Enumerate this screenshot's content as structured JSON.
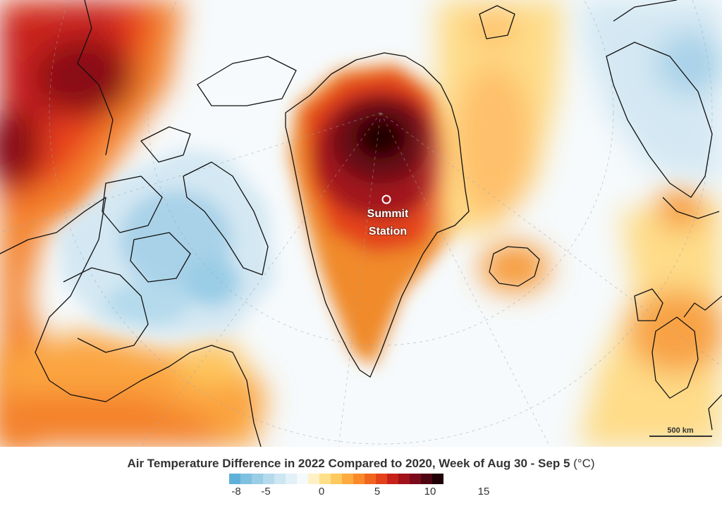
{
  "map": {
    "label_summit": [
      "Summit",
      "Station"
    ],
    "scale_label": "500 km",
    "marker_icon": "summit-station-circle-icon"
  },
  "legend": {
    "title": "Air Temperature Difference in 2022 Compared to 2020, Week of Aug 30 - Sep 5",
    "unit": "(°C)",
    "ticks": [
      "-8",
      "-5",
      "0",
      "5",
      "10",
      "15"
    ],
    "colors": [
      "#5fb0d8",
      "#7fc0e0",
      "#9acde6",
      "#b4daec",
      "#cce6f2",
      "#e2f0f8",
      "#f4f9fc",
      "#fff1c4",
      "#ffe08a",
      "#fec95e",
      "#fdab3e",
      "#f98a2b",
      "#f0661f",
      "#e3421b",
      "#c8211a",
      "#a2121a",
      "#7a0a1a",
      "#4f0512",
      "#200006"
    ],
    "color_roles": {
      "cold": "#9acde6",
      "neutral": "#f7fbfd",
      "warm": "#fdab3e",
      "hot": "#c8211a",
      "extreme": "#200006",
      "coastline": "#111111"
    }
  }
}
